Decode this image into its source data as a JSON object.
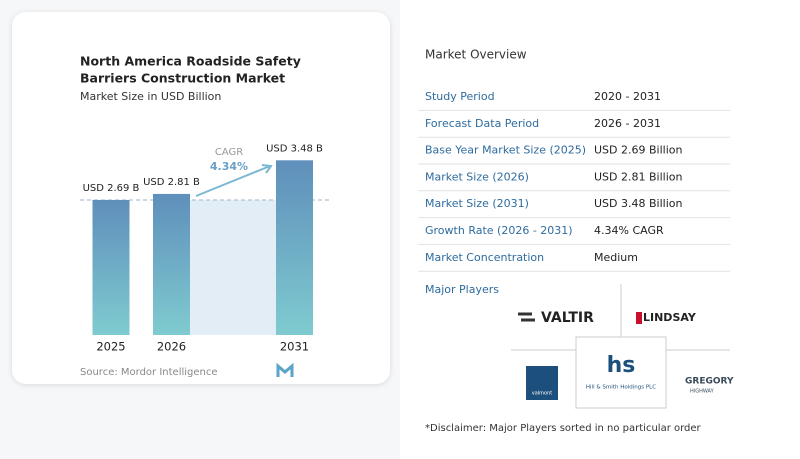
{
  "chart_data": {
    "type": "bar",
    "title": [
      "North America Roadside Safety",
      "Barriers Construction Market"
    ],
    "subtitle": "Market Size in USD Billion",
    "categories": [
      "2025",
      "2026",
      "2031"
    ],
    "values": [
      2.69,
      2.81,
      3.48
    ],
    "value_labels": [
      "USD 2.69 B",
      "USD 2.81 B",
      "USD 3.48 B"
    ],
    "color": "#6a9fc6",
    "annotations": [
      "CAGR",
      "4.34%"
    ],
    "source": "Source: Mordor Intelligence"
  },
  "overview": {
    "title": "Market Overview",
    "rows": [
      [
        "Study Period",
        "2020 - 2031"
      ],
      [
        "Forecast Data Period",
        "2026 - 2031"
      ],
      [
        "Base Year Market Size (2025)",
        "USD 2.69 Billion"
      ],
      [
        "Market Size (2026)",
        "USD 2.81 Billion"
      ],
      [
        "Market Size (2031)",
        "USD 3.48 Billion"
      ],
      [
        "Growth Rate (2026 - 2031)",
        "4.34% CAGR"
      ],
      [
        "Market Concentration",
        "Medium"
      ]
    ],
    "players_title": "Major Players",
    "players": [
      "VALTIR",
      "LINDSAY",
      "valmont",
      "Hill & Smith Holdings PLC",
      "GREGORY",
      "HIGHWAY"
    ],
    "disclaimer": "*Disclaimer: Major Players sorted in no particular order"
  }
}
